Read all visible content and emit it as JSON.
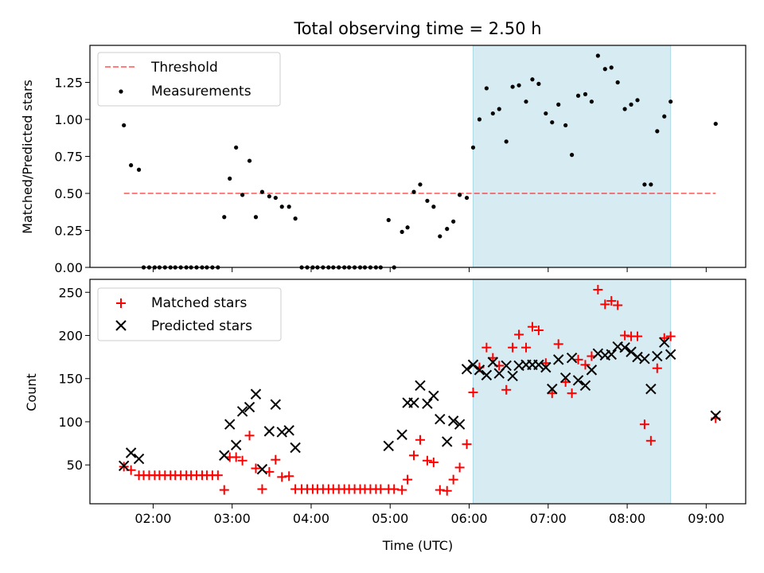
{
  "title": "Total observing time = 2.50 h",
  "chart_data": [
    {
      "type": "scatter",
      "panel": "top",
      "title": "Total observing time = 2.50 h",
      "ylabel": "Matched/Predicted stars",
      "xlim": [
        1.2,
        9.5
      ],
      "ylim": [
        0,
        1.5
      ],
      "yticks": [
        0.0,
        0.25,
        0.5,
        0.75,
        1.0,
        1.25
      ],
      "ytick_labels": [
        "0.00",
        "0.25",
        "0.50",
        "0.75",
        "1.00",
        "1.25"
      ],
      "grid": false,
      "legend_position": "top-left",
      "highlight": {
        "x_start": 6.05,
        "x_end": 8.55,
        "color": "#add8e6"
      },
      "threshold": {
        "name": "Threshold",
        "y": 0.5,
        "x_start": 1.63,
        "x_end": 9.12,
        "color": "#ff0000",
        "style": "dashed"
      },
      "series": [
        {
          "name": "Measurements",
          "color": "#000000",
          "marker": "dot",
          "points": [
            [
              1.63,
              0.96
            ],
            [
              1.72,
              0.69
            ],
            [
              1.82,
              0.66
            ],
            [
              1.88,
              0.0
            ],
            [
              1.95,
              0.0
            ],
            [
              2.02,
              0.0
            ],
            [
              2.08,
              0.0
            ],
            [
              2.15,
              0.0
            ],
            [
              2.22,
              0.0
            ],
            [
              2.28,
              0.0
            ],
            [
              2.35,
              0.0
            ],
            [
              2.42,
              0.0
            ],
            [
              2.48,
              0.0
            ],
            [
              2.55,
              0.0
            ],
            [
              2.62,
              0.0
            ],
            [
              2.68,
              0.0
            ],
            [
              2.75,
              0.0
            ],
            [
              2.82,
              0.0
            ],
            [
              2.9,
              0.34
            ],
            [
              2.97,
              0.6
            ],
            [
              3.05,
              0.81
            ],
            [
              3.13,
              0.49
            ],
            [
              3.22,
              0.72
            ],
            [
              3.3,
              0.34
            ],
            [
              3.38,
              0.51
            ],
            [
              3.47,
              0.48
            ],
            [
              3.55,
              0.47
            ],
            [
              3.63,
              0.41
            ],
            [
              3.72,
              0.41
            ],
            [
              3.8,
              0.33
            ],
            [
              3.88,
              0.0
            ],
            [
              3.95,
              0.0
            ],
            [
              4.02,
              0.0
            ],
            [
              4.08,
              0.0
            ],
            [
              4.15,
              0.0
            ],
            [
              4.22,
              0.0
            ],
            [
              4.28,
              0.0
            ],
            [
              4.35,
              0.0
            ],
            [
              4.42,
              0.0
            ],
            [
              4.48,
              0.0
            ],
            [
              4.55,
              0.0
            ],
            [
              4.62,
              0.0
            ],
            [
              4.68,
              0.0
            ],
            [
              4.75,
              0.0
            ],
            [
              4.82,
              0.0
            ],
            [
              4.88,
              0.0
            ],
            [
              4.98,
              0.32
            ],
            [
              5.05,
              0.0
            ],
            [
              5.15,
              0.24
            ],
            [
              5.22,
              0.27
            ],
            [
              5.3,
              0.51
            ],
            [
              5.38,
              0.56
            ],
            [
              5.47,
              0.45
            ],
            [
              5.55,
              0.41
            ],
            [
              5.63,
              0.21
            ],
            [
              5.72,
              0.26
            ],
            [
              5.8,
              0.31
            ],
            [
              5.88,
              0.49
            ],
            [
              5.97,
              0.47
            ],
            [
              6.05,
              0.81
            ],
            [
              6.13,
              1.0
            ],
            [
              6.22,
              1.21
            ],
            [
              6.3,
              1.04
            ],
            [
              6.38,
              1.07
            ],
            [
              6.47,
              0.85
            ],
            [
              6.55,
              1.22
            ],
            [
              6.63,
              1.23
            ],
            [
              6.72,
              1.12
            ],
            [
              6.8,
              1.27
            ],
            [
              6.88,
              1.24
            ],
            [
              6.97,
              1.04
            ],
            [
              7.05,
              0.98
            ],
            [
              7.13,
              1.1
            ],
            [
              7.22,
              0.96
            ],
            [
              7.3,
              0.76
            ],
            [
              7.38,
              1.16
            ],
            [
              7.47,
              1.17
            ],
            [
              7.55,
              1.12
            ],
            [
              7.63,
              1.43
            ],
            [
              7.72,
              1.34
            ],
            [
              7.8,
              1.35
            ],
            [
              7.88,
              1.25
            ],
            [
              7.97,
              1.07
            ],
            [
              8.05,
              1.1
            ],
            [
              8.13,
              1.13
            ],
            [
              8.22,
              0.56
            ],
            [
              8.3,
              0.56
            ],
            [
              8.38,
              0.92
            ],
            [
              8.47,
              1.02
            ],
            [
              8.55,
              1.12
            ],
            [
              9.12,
              0.97
            ]
          ]
        }
      ]
    },
    {
      "type": "scatter",
      "panel": "bottom",
      "xlabel": "Time (UTC)",
      "ylabel": "Count",
      "xlim": [
        1.2,
        9.5
      ],
      "ylim": [
        5,
        265
      ],
      "xticks": [
        2,
        3,
        4,
        5,
        6,
        7,
        8,
        9
      ],
      "xtick_labels": [
        "02:00",
        "03:00",
        "04:00",
        "05:00",
        "06:00",
        "07:00",
        "08:00",
        "09:00"
      ],
      "yticks": [
        50,
        100,
        150,
        200,
        250
      ],
      "ytick_labels": [
        "50",
        "100",
        "150",
        "200",
        "250"
      ],
      "grid": false,
      "legend_position": "top-left",
      "highlight": {
        "x_start": 6.05,
        "x_end": 8.55,
        "color": "#add8e6"
      },
      "series": [
        {
          "name": "Matched stars",
          "color": "#ff0000",
          "marker": "plus",
          "points": [
            [
              1.63,
              48
            ],
            [
              1.72,
              44
            ],
            [
              1.82,
              38
            ],
            [
              1.88,
              38
            ],
            [
              1.95,
              38
            ],
            [
              2.02,
              38
            ],
            [
              2.08,
              38
            ],
            [
              2.15,
              38
            ],
            [
              2.22,
              38
            ],
            [
              2.28,
              38
            ],
            [
              2.35,
              38
            ],
            [
              2.42,
              38
            ],
            [
              2.48,
              38
            ],
            [
              2.55,
              38
            ],
            [
              2.62,
              38
            ],
            [
              2.68,
              38
            ],
            [
              2.75,
              38
            ],
            [
              2.82,
              38
            ],
            [
              2.9,
              21
            ],
            [
              2.97,
              59
            ],
            [
              3.05,
              59
            ],
            [
              3.13,
              55
            ],
            [
              3.22,
              84
            ],
            [
              3.3,
              46
            ],
            [
              3.38,
              22
            ],
            [
              3.47,
              42
            ],
            [
              3.55,
              56
            ],
            [
              3.63,
              36
            ],
            [
              3.72,
              37
            ],
            [
              3.8,
              22
            ],
            [
              3.88,
              22
            ],
            [
              3.95,
              22
            ],
            [
              4.02,
              22
            ],
            [
              4.08,
              22
            ],
            [
              4.15,
              22
            ],
            [
              4.22,
              22
            ],
            [
              4.28,
              22
            ],
            [
              4.35,
              22
            ],
            [
              4.42,
              22
            ],
            [
              4.48,
              22
            ],
            [
              4.55,
              22
            ],
            [
              4.62,
              22
            ],
            [
              4.68,
              22
            ],
            [
              4.75,
              22
            ],
            [
              4.82,
              22
            ],
            [
              4.88,
              22
            ],
            [
              4.98,
              22
            ],
            [
              5.05,
              22
            ],
            [
              5.15,
              21
            ],
            [
              5.22,
              33
            ],
            [
              5.3,
              61
            ],
            [
              5.38,
              79
            ],
            [
              5.47,
              55
            ],
            [
              5.55,
              53
            ],
            [
              5.63,
              21
            ],
            [
              5.72,
              20
            ],
            [
              5.8,
              33
            ],
            [
              5.88,
              47
            ],
            [
              5.97,
              74
            ],
            [
              6.05,
              134
            ],
            [
              6.13,
              163
            ],
            [
              6.22,
              186
            ],
            [
              6.3,
              174
            ],
            [
              6.38,
              165
            ],
            [
              6.47,
              137
            ],
            [
              6.55,
              186
            ],
            [
              6.63,
              201
            ],
            [
              6.72,
              186
            ],
            [
              6.8,
              210
            ],
            [
              6.88,
              206
            ],
            [
              6.97,
              168
            ],
            [
              7.05,
              133
            ],
            [
              7.13,
              190
            ],
            [
              7.22,
              146
            ],
            [
              7.3,
              133
            ],
            [
              7.38,
              172
            ],
            [
              7.47,
              166
            ],
            [
              7.55,
              176
            ],
            [
              7.63,
              253
            ],
            [
              7.72,
              236
            ],
            [
              7.8,
              240
            ],
            [
              7.88,
              235
            ],
            [
              7.97,
              200
            ],
            [
              8.05,
              199
            ],
            [
              8.13,
              199
            ],
            [
              8.22,
              97
            ],
            [
              8.3,
              78
            ],
            [
              8.38,
              162
            ],
            [
              8.47,
              197
            ],
            [
              8.55,
              199
            ],
            [
              9.12,
              104
            ]
          ]
        },
        {
          "name": "Predicted stars",
          "color": "#000000",
          "marker": "x",
          "points": [
            [
              1.63,
              49
            ],
            [
              1.72,
              64
            ],
            [
              1.82,
              57
            ],
            [
              2.9,
              61
            ],
            [
              2.97,
              97
            ],
            [
              3.05,
              73
            ],
            [
              3.13,
              112
            ],
            [
              3.22,
              117
            ],
            [
              3.3,
              132
            ],
            [
              3.38,
              45
            ],
            [
              3.47,
              89
            ],
            [
              3.55,
              120
            ],
            [
              3.63,
              88
            ],
            [
              3.72,
              90
            ],
            [
              3.8,
              70
            ],
            [
              4.98,
              72
            ],
            [
              5.15,
              85
            ],
            [
              5.22,
              122
            ],
            [
              5.3,
              122
            ],
            [
              5.38,
              142
            ],
            [
              5.47,
              121
            ],
            [
              5.55,
              130
            ],
            [
              5.63,
              103
            ],
            [
              5.72,
              77
            ],
            [
              5.8,
              101
            ],
            [
              5.88,
              97
            ],
            [
              5.97,
              161
            ],
            [
              6.05,
              166
            ],
            [
              6.13,
              160
            ],
            [
              6.22,
              154
            ],
            [
              6.3,
              169
            ],
            [
              6.38,
              156
            ],
            [
              6.47,
              165
            ],
            [
              6.55,
              153
            ],
            [
              6.63,
              165
            ],
            [
              6.72,
              166
            ],
            [
              6.8,
              166
            ],
            [
              6.88,
              166
            ],
            [
              6.97,
              163
            ],
            [
              7.05,
              138
            ],
            [
              7.13,
              172
            ],
            [
              7.22,
              151
            ],
            [
              7.3,
              174
            ],
            [
              7.38,
              148
            ],
            [
              7.47,
              142
            ],
            [
              7.55,
              160
            ],
            [
              7.63,
              179
            ],
            [
              7.72,
              177
            ],
            [
              7.8,
              178
            ],
            [
              7.88,
              187
            ],
            [
              7.97,
              186
            ],
            [
              8.05,
              181
            ],
            [
              8.13,
              175
            ],
            [
              8.22,
              173
            ],
            [
              8.3,
              138
            ],
            [
              8.38,
              176
            ],
            [
              8.47,
              192
            ],
            [
              8.55,
              178
            ],
            [
              9.12,
              107
            ]
          ]
        }
      ]
    }
  ]
}
